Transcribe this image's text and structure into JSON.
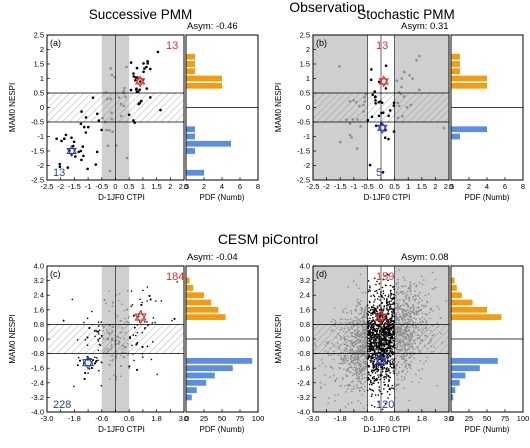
{
  "super_titles": {
    "observation": "Observation",
    "cesm": "CESM piControl"
  },
  "chart_data": [
    {
      "panel": "(a)",
      "type": "scatter",
      "title": "Successive PMM",
      "asym_text": "Asym: -0.46",
      "xlabel": "D-1JF0 CTPI",
      "ylabel": "MAM0 NESPI",
      "hist_xlabel": "PDF (Numb)",
      "xlim": [
        -2.5,
        2.5
      ],
      "ylim": [
        -2.5,
        2.5
      ],
      "xticks": [
        "-2.5",
        "-2",
        "-1.5",
        "-1",
        "-0.5",
        "0",
        "0.5",
        "1",
        "1.5",
        "2",
        "2.5"
      ],
      "yticks": [
        "-2.5",
        "-2",
        "-1.5",
        "-1",
        "-0.5",
        "0",
        "0.5",
        "1",
        "1.5",
        "2",
        "2.5"
      ],
      "hist_xlim": [
        0,
        8
      ],
      "hist_xticks": [
        "0",
        "2",
        "4",
        "6",
        "8"
      ],
      "shade": "middle",
      "highlight_color": "#000000",
      "grey_color": "#8c8c8c",
      "count_upper": "13",
      "count_lower": "13",
      "centroid_pos": [
        0.9,
        0.9
      ],
      "centroid_neg": [
        -1.6,
        -1.5
      ],
      "hist_bins": [
        2.25,
        2.0,
        1.75,
        1.5,
        1.25,
        1.0,
        0.75,
        -0.75,
        -1.0,
        -1.25,
        -1.5,
        -1.75,
        -2.0,
        -2.25
      ],
      "hist_pos": [
        0,
        0,
        1,
        1,
        1,
        4,
        4
      ],
      "hist_neg": [
        1,
        1,
        5,
        1,
        0,
        0,
        2
      ],
      "n": 90,
      "seed": 11
    },
    {
      "panel": "(b)",
      "type": "scatter",
      "title": "Stochastic PMM",
      "asym_text": "Asym: 0.31",
      "xlabel": "D-1JF0 CTPI",
      "ylabel": "MAM0 NESPI",
      "hist_xlabel": "PDF (Numb)",
      "xlim": [
        -2.5,
        2.5
      ],
      "ylim": [
        -2.5,
        2.5
      ],
      "xticks": [
        "-2.5",
        "-2",
        "-1.5",
        "-1",
        "-0.5",
        "0",
        "0.5",
        "1",
        "1.5",
        "2",
        "2.5"
      ],
      "yticks": [
        "-2.5",
        "-2",
        "-1.5",
        "-1",
        "-0.5",
        "0",
        "0.5",
        "1",
        "1.5",
        "2",
        "2.5"
      ],
      "hist_xlim": [
        0,
        8
      ],
      "hist_xticks": [
        "0",
        "2",
        "4",
        "6",
        "8"
      ],
      "shade": "outer",
      "highlight_color": "#000000",
      "grey_color": "#8c8c8c",
      "count_upper": "13",
      "count_lower": "5",
      "centroid_pos": [
        0.1,
        0.9
      ],
      "centroid_neg": [
        0.05,
        -0.7
      ],
      "hist_bins": [
        2.25,
        2.0,
        1.75,
        1.5,
        1.25,
        1.0,
        0.75,
        -0.75,
        -1.0,
        -1.25,
        -1.5,
        -1.75,
        -2.0,
        -2.25
      ],
      "hist_pos": [
        0,
        0,
        1,
        1,
        1,
        4,
        4
      ],
      "hist_neg": [
        4,
        1,
        0,
        0,
        0,
        0,
        0
      ],
      "n": 70,
      "seed": 23
    },
    {
      "panel": "(c)",
      "type": "scatter",
      "asym_text": "Asym: -0.04",
      "xlabel": "D-1JF0 CTPI",
      "ylabel": "MAM0 NESPI",
      "hist_xlabel": "PDF (Numb)",
      "xlim": [
        -3.0,
        3.0
      ],
      "ylim": [
        -4.0,
        4.0
      ],
      "xticks": [
        "-3.0",
        "-2.4",
        "-1.8",
        "-1.2",
        "-0.6",
        "0.0",
        "0.6",
        "1.2",
        "1.8",
        "2.4",
        "3.0"
      ],
      "yticks": [
        "-4.0",
        "-3.2",
        "-2.4",
        "-1.6",
        "-0.8",
        "0.0",
        "0.8",
        "1.6",
        "2.4",
        "3.2",
        "4.0"
      ],
      "hist_xlim": [
        0,
        100
      ],
      "hist_xticks": [
        "0",
        "25",
        "50",
        "75",
        "100"
      ],
      "shade": "middle",
      "highlight_color": "#000000",
      "grey_color": "#8c8c8c",
      "count_upper": "184",
      "count_lower": "228",
      "centroid_pos": [
        1.1,
        1.2
      ],
      "centroid_neg": [
        -1.2,
        -1.3
      ],
      "hist_bins": [
        3.2,
        2.8,
        2.4,
        2.0,
        1.6,
        1.2,
        -1.2,
        -1.6,
        -2.0,
        -2.4,
        -2.8,
        -3.2
      ],
      "hist_pos": [
        5,
        10,
        25,
        35,
        45,
        55
      ],
      "hist_neg": [
        92,
        65,
        40,
        28,
        15,
        8
      ],
      "n": 2400,
      "seed": 37
    },
    {
      "panel": "(d)",
      "type": "scatter",
      "asym_text": "Asym: 0.08",
      "xlabel": "D-1JF0 CTPI",
      "ylabel": "MAM0 NESPI",
      "hist_xlabel": "PDF (Numb)",
      "xlim": [
        -3.0,
        3.0
      ],
      "ylim": [
        -4.0,
        4.0
      ],
      "xticks": [
        "-3.0",
        "-2.4",
        "-1.8",
        "-1.2",
        "-0.6",
        "0.0",
        "0.6",
        "1.2",
        "1.8",
        "2.4",
        "3.0"
      ],
      "yticks": [
        "-4.0",
        "-3.2",
        "-2.4",
        "-1.6",
        "-0.8",
        "0.0",
        "0.8",
        "1.6",
        "2.4",
        "3.2",
        "4.0"
      ],
      "hist_xlim": [
        0,
        100
      ],
      "hist_xticks": [
        "0",
        "25",
        "50",
        "75",
        "100"
      ],
      "shade": "outer",
      "highlight_color": "#000000",
      "grey_color": "#8c8c8c",
      "count_upper": "159",
      "count_lower": "120",
      "centroid_pos": [
        0.0,
        1.2
      ],
      "centroid_neg": [
        0.0,
        -1.2
      ],
      "hist_bins": [
        3.2,
        2.8,
        2.4,
        2.0,
        1.6,
        1.2,
        -1.2,
        -1.6,
        -2.0,
        -2.4,
        -2.8,
        -3.2
      ],
      "hist_pos": [
        5,
        8,
        15,
        30,
        50,
        70
      ],
      "hist_neg": [
        65,
        40,
        20,
        12,
        6,
        3
      ],
      "n": 2400,
      "seed": 53
    }
  ]
}
